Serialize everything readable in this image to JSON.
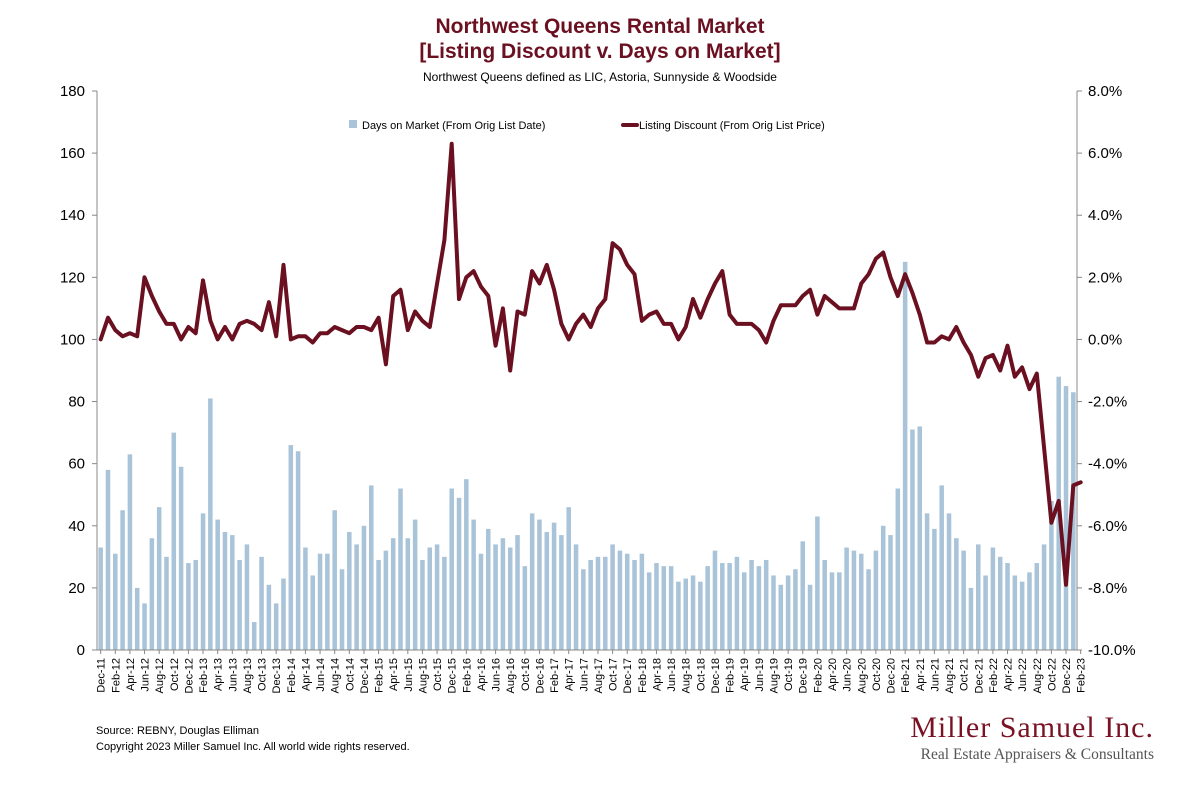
{
  "chart_data": {
    "type": "bar+line",
    "title": "Northwest Queens Rental Market",
    "title_line2": "[Listing Discount v. Days on Market]",
    "subtitle": "Northwest Queens defined as LIC, Astoria, Sunnyside & Woodside",
    "xlabel": "",
    "ylabel_left": "",
    "ylabel_right": "",
    "ylim_left": [
      0,
      180
    ],
    "yticks_left": [
      "0",
      "20",
      "40",
      "60",
      "80",
      "100",
      "120",
      "140",
      "160",
      "180"
    ],
    "ylim_right": [
      -10.0,
      8.0
    ],
    "yticks_right": [
      "-10.0%",
      "-8.0%",
      "-6.0%",
      "-4.0%",
      "-2.0%",
      "0.0%",
      "2.0%",
      "4.0%",
      "6.0%",
      "8.0%"
    ],
    "grid": false,
    "legend_position": "top",
    "x_tick_labels": [
      "Dec-11",
      "Feb-12",
      "Apr-12",
      "Jun-12",
      "Aug-12",
      "Oct-12",
      "Dec-12",
      "Feb-13",
      "Apr-13",
      "Jun-13",
      "Aug-13",
      "Oct-13",
      "Dec-13",
      "Feb-14",
      "Apr-14",
      "Jun-14",
      "Aug-14",
      "Oct-14",
      "Dec-14",
      "Feb-15",
      "Apr-15",
      "Jun-15",
      "Aug-15",
      "Oct-15",
      "Dec-15",
      "Feb-16",
      "Apr-16",
      "Jun-16",
      "Aug-16",
      "Oct-16",
      "Dec-16",
      "Feb-17",
      "Apr-17",
      "Jun-17",
      "Aug-17",
      "Oct-17",
      "Dec-17",
      "Feb-18",
      "Apr-18",
      "Jun-18",
      "Aug-18",
      "Oct-18",
      "Dec-18",
      "Feb-19",
      "Apr-19",
      "Jun-19",
      "Aug-19",
      "Oct-19",
      "Dec-19",
      "Feb-20",
      "Apr-20",
      "Jun-20",
      "Aug-20",
      "Oct-20",
      "Dec-20",
      "Feb-21",
      "Apr-21",
      "Jun-21",
      "Aug-21",
      "Oct-21",
      "Dec-21",
      "Feb-22",
      "Apr-22",
      "Jun-22",
      "Aug-22",
      "Oct-22",
      "Dec-22",
      "Feb-23"
    ],
    "series": [
      {
        "name": "Days on Market (From Orig List Date)",
        "type": "bar",
        "axis": "left",
        "color": "#a9c4d9",
        "values": [
          33,
          58,
          31,
          45,
          63,
          20,
          15,
          36,
          46,
          30,
          70,
          59,
          28,
          29,
          44,
          81,
          42,
          38,
          37,
          29,
          34,
          9,
          30,
          21,
          15,
          23,
          66,
          64,
          33,
          24,
          31,
          31,
          45,
          26,
          38,
          34,
          40,
          53,
          29,
          32,
          36,
          52,
          36,
          42,
          29,
          33,
          34,
          30,
          52,
          49,
          55,
          42,
          31,
          39,
          34,
          36,
          33,
          37,
          27,
          44,
          42,
          38,
          41,
          37,
          46,
          34,
          26,
          29,
          30,
          30,
          34,
          32,
          31,
          29,
          31,
          25,
          28,
          27,
          27,
          22,
          23,
          24,
          22,
          27,
          32,
          28,
          28,
          30,
          25,
          29,
          27,
          29,
          24,
          21,
          24,
          26,
          35,
          21,
          43,
          29,
          25,
          25,
          33,
          32,
          31,
          26,
          32,
          40,
          37,
          52,
          125,
          71,
          72,
          44,
          39,
          53,
          44,
          36,
          32,
          20,
          34,
          24,
          33,
          30,
          28,
          24,
          22,
          25,
          28,
          34,
          48,
          88,
          85,
          83
        ]
      },
      {
        "name": "Listing Discount (From Orig List Price)",
        "type": "line",
        "axis": "right",
        "unit": "%",
        "color": "#6b1020",
        "values": [
          0.0,
          0.7,
          0.3,
          0.1,
          0.2,
          0.1,
          2.0,
          1.4,
          0.9,
          0.5,
          0.5,
          0.0,
          0.4,
          0.2,
          1.9,
          0.6,
          0.0,
          0.4,
          0.0,
          0.5,
          0.6,
          0.5,
          0.3,
          1.2,
          0.1,
          2.4,
          0.0,
          0.1,
          0.1,
          -0.1,
          0.2,
          0.2,
          0.4,
          0.3,
          0.2,
          0.4,
          0.4,
          0.3,
          0.7,
          -0.8,
          1.4,
          1.6,
          0.3,
          0.9,
          0.6,
          0.4,
          1.8,
          3.2,
          6.3,
          1.3,
          2.0,
          2.2,
          1.7,
          1.4,
          -0.2,
          1.0,
          -1.0,
          0.9,
          0.8,
          2.2,
          1.8,
          2.4,
          1.6,
          0.5,
          0.0,
          0.5,
          0.8,
          0.4,
          1.0,
          1.3,
          3.1,
          2.9,
          2.4,
          2.1,
          0.6,
          0.8,
          0.9,
          0.5,
          0.5,
          0.0,
          0.4,
          1.3,
          0.7,
          1.3,
          1.8,
          2.2,
          0.8,
          0.5,
          0.5,
          0.5,
          0.3,
          -0.1,
          0.6,
          1.1,
          1.1,
          1.1,
          1.4,
          1.6,
          0.8,
          1.4,
          1.2,
          1.0,
          1.0,
          1.0,
          1.8,
          2.1,
          2.6,
          2.8,
          2.0,
          1.4,
          2.1,
          1.5,
          0.8,
          -0.1,
          -0.1,
          0.1,
          0.0,
          0.4,
          -0.1,
          -0.5,
          -1.2,
          -0.6,
          -0.5,
          -1.0,
          -0.2,
          -1.2,
          -0.9,
          -1.6,
          -1.1,
          -3.5,
          -5.9,
          -5.2,
          -7.9,
          -4.7,
          -4.6
        ]
      }
    ]
  },
  "footer": {
    "source": "Source: REBNY, Douglas Elliman",
    "copyright": "Copyright 2023 Miller Samuel Inc.  All world wide rights reserved."
  },
  "logo": {
    "name": "Miller Samuel Inc.",
    "tagline": "Real Estate Appraisers & Consultants"
  }
}
